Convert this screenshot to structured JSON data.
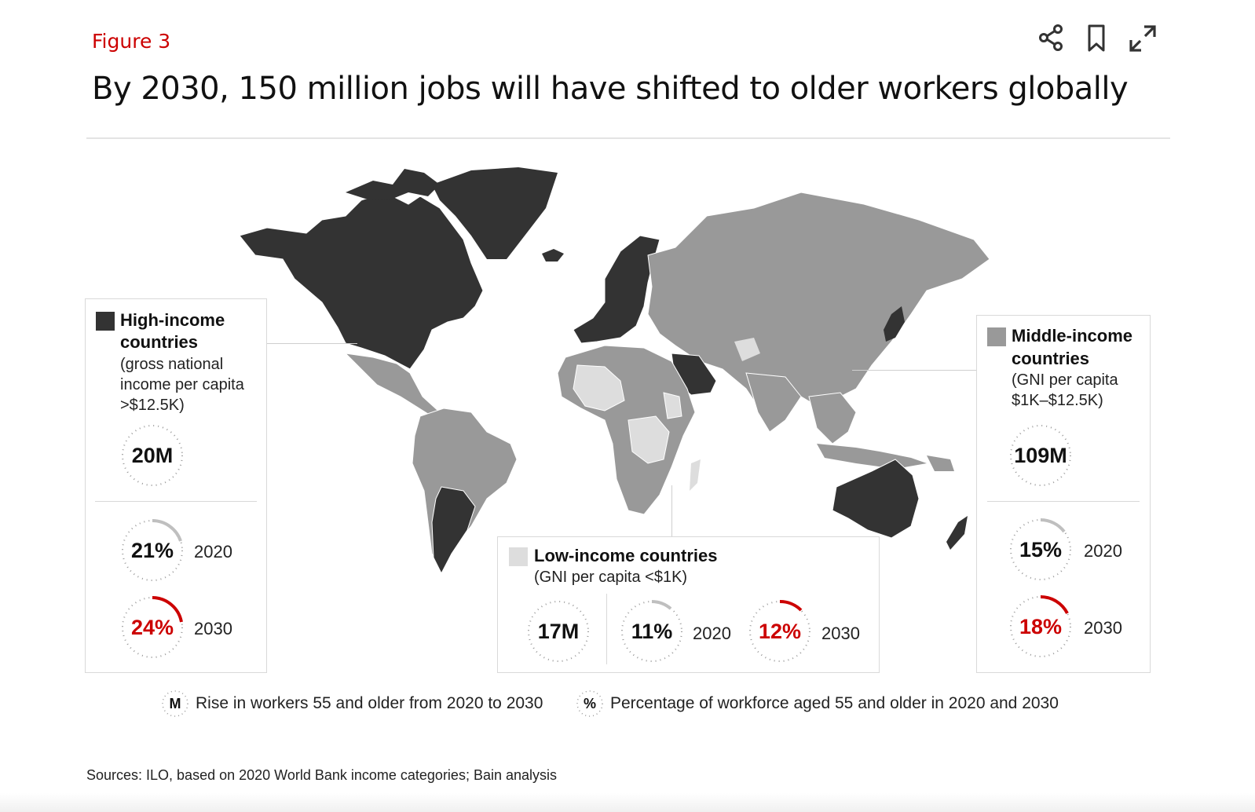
{
  "header": {
    "figure_label": "Figure 3",
    "title": "By 2030, 150 million jobs will have shifted to older workers globally"
  },
  "toolbar": [
    {
      "icon": "share-icon"
    },
    {
      "icon": "bookmark-icon"
    },
    {
      "icon": "expand-icon"
    }
  ],
  "colors": {
    "accent": "#cc0000",
    "high_income": "#333333",
    "middle_income": "#999999",
    "low_income": "#dddddd",
    "ring_track": "#bfbfbf"
  },
  "panels": {
    "high": {
      "name": "High-income countries",
      "name_line1": "High-income",
      "name_line2": "countries",
      "desc_line1": "(gross national",
      "desc_line2": "income per capita",
      "desc_line3": ">$12.5K)",
      "rise": "20M",
      "pct_2020": "21%",
      "year_2020": "2020",
      "pct_2030": "24%",
      "year_2030": "2030"
    },
    "low": {
      "name": "Low-income countries",
      "desc": "(GNI per capita <$1K)",
      "rise": "17M",
      "pct_2020": "11%",
      "year_2020": "2020",
      "pct_2030": "12%",
      "year_2030": "2030"
    },
    "middle": {
      "name_line1": "Middle-income",
      "name_line2": "countries",
      "desc_line1": "(GNI per capita",
      "desc_line2": "$1K–$12.5K)",
      "rise": "109M",
      "pct_2020": "15%",
      "year_2020": "2020",
      "pct_2030": "18%",
      "year_2030": "2030"
    }
  },
  "key": {
    "m_symbol": "M",
    "m_text": "Rise in workers 55 and older from 2020 to 2030",
    "pct_symbol": "%",
    "pct_text": "Percentage of workforce aged 55 and older in 2020 and 2030"
  },
  "sources": "Sources: ILO, based on 2020 World Bank income categories; Bain analysis"
}
